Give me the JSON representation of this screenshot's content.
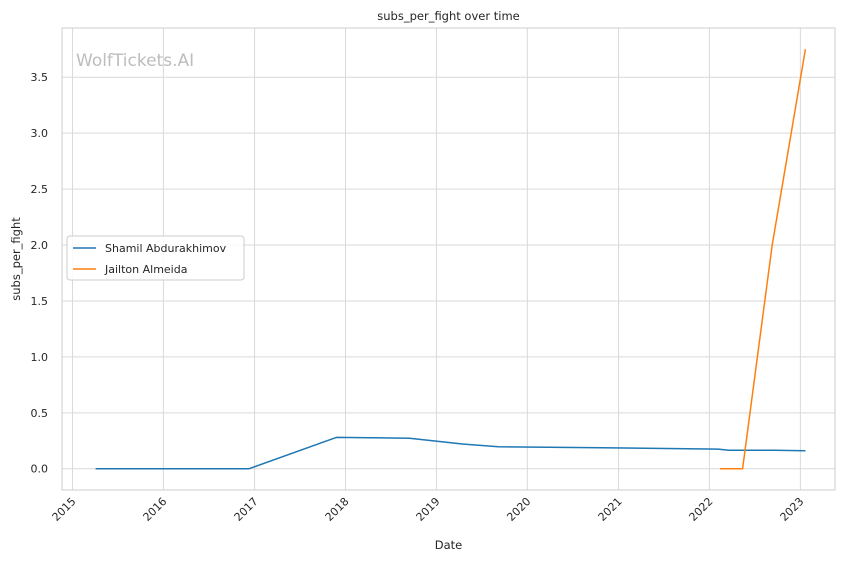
{
  "chart_data": {
    "type": "line",
    "title": "subs_per_fight over time",
    "xlabel": "Date",
    "ylabel": "subs_per_fight",
    "watermark": "WolfTickets.AI",
    "xlim": [
      "2014-11-20",
      "2023-05-20"
    ],
    "ylim": [
      -0.19,
      3.94
    ],
    "x_ticks": [
      "2015",
      "2016",
      "2017",
      "2018",
      "2019",
      "2020",
      "2021",
      "2022",
      "2023"
    ],
    "y_ticks": [
      "0.0",
      "0.5",
      "1.0",
      "1.5",
      "2.0",
      "2.5",
      "3.0",
      "3.5"
    ],
    "grid": true,
    "legend_position": "center-left",
    "series": [
      {
        "name": "Shamil Abdurakhimov",
        "color": "#1f77b4",
        "points": [
          {
            "x": "2015-04-04",
            "y": 0.0
          },
          {
            "x": "2016-04-01",
            "y": 0.0
          },
          {
            "x": "2016-12-10",
            "y": 0.0
          },
          {
            "x": "2017-11-25",
            "y": 0.28
          },
          {
            "x": "2018-09-15",
            "y": 0.273
          },
          {
            "x": "2019-04-20",
            "y": 0.22
          },
          {
            "x": "2019-09-07",
            "y": 0.196
          },
          {
            "x": "2020-10-24",
            "y": 0.188
          },
          {
            "x": "2022-02-05",
            "y": 0.176
          },
          {
            "x": "2022-03-19",
            "y": 0.166
          },
          {
            "x": "2022-09-17",
            "y": 0.166
          },
          {
            "x": "2023-01-21",
            "y": 0.161
          }
        ]
      },
      {
        "name": "Jailton Almeida",
        "color": "#ff7f0e",
        "points": [
          {
            "x": "2022-02-12",
            "y": 0.0
          },
          {
            "x": "2022-05-14",
            "y": 0.0
          },
          {
            "x": "2022-09-10",
            "y": 2.0
          },
          {
            "x": "2023-01-21",
            "y": 3.75
          }
        ]
      }
    ]
  }
}
